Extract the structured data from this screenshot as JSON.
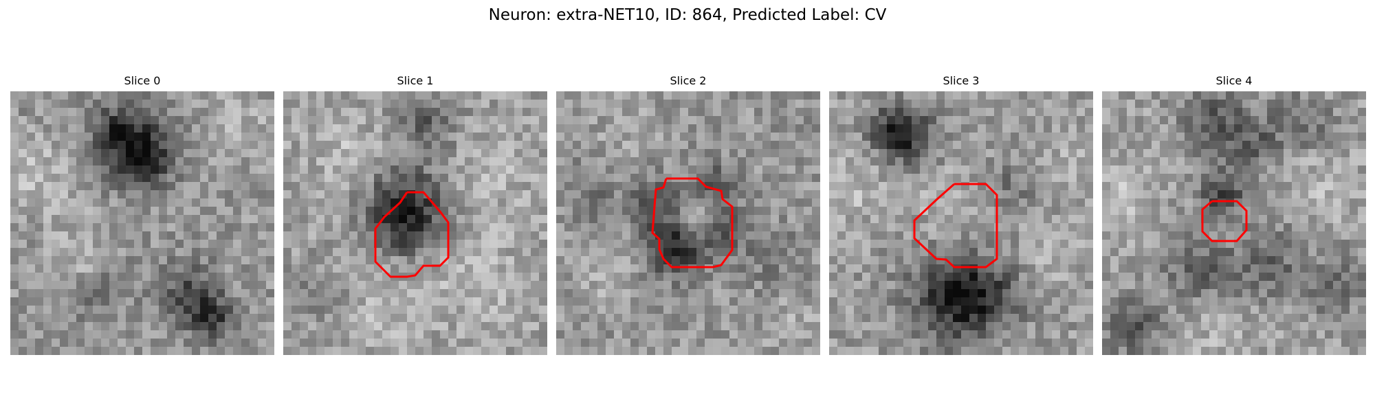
{
  "figure": {
    "title": "Neuron: extra-NET10, ID: 864, Predicted Label: CV"
  },
  "panels": [
    {
      "title": "Slice 0",
      "has_contour": false
    },
    {
      "title": "Slice 1",
      "has_contour": true
    },
    {
      "title": "Slice 2",
      "has_contour": true
    },
    {
      "title": "Slice 3",
      "has_contour": true
    },
    {
      "title": "Slice 4",
      "has_contour": true
    }
  ],
  "colors": {
    "contour": "#ff0000",
    "colormap": "gray"
  }
}
